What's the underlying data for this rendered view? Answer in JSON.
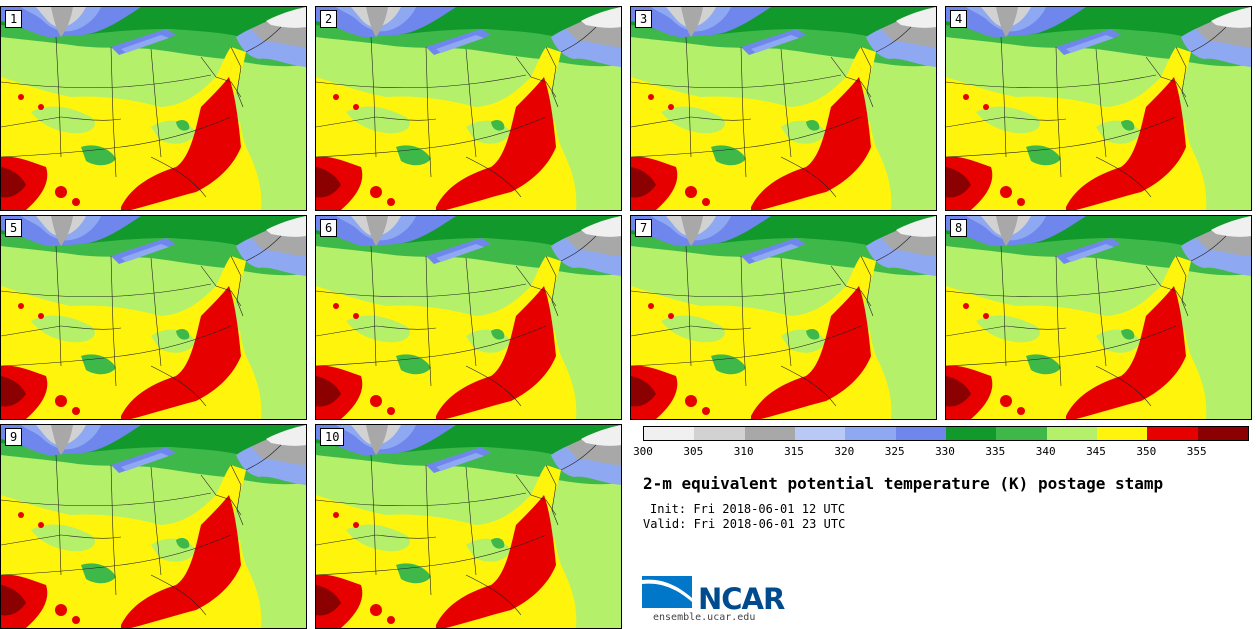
{
  "panels": [
    {
      "label": "1"
    },
    {
      "label": "2"
    },
    {
      "label": "3"
    },
    {
      "label": "4"
    },
    {
      "label": "5"
    },
    {
      "label": "6"
    },
    {
      "label": "7"
    },
    {
      "label": "8"
    },
    {
      "label": "9"
    },
    {
      "label": "10"
    }
  ],
  "colorbar": {
    "colors": [
      "#f0f0f0",
      "#d2d2d2",
      "#a8a8a8",
      "#b9c9f5",
      "#8ea8f2",
      "#6f86ec",
      "#119a2b",
      "#3fb84a",
      "#b4f06a",
      "#fff40c",
      "#e60000",
      "#8b0000"
    ],
    "tick_labels": [
      "300",
      "305",
      "310",
      "315",
      "320",
      "325",
      "330",
      "335",
      "340",
      "345",
      "350",
      "355"
    ]
  },
  "title": "2-m equivalent potential temperature (K) postage stamp",
  "init_text": "Init: Fri 2018-06-01 12 UTC",
  "valid_text": "Valid: Fri 2018-06-01 23 UTC",
  "logo_text": "NCAR",
  "url_text": "ensemble.ucar.edu",
  "map_colors": {
    "green_light": "#b4f06a",
    "green_mid": "#3fb84a",
    "green_dark": "#119a2b",
    "yellow": "#fff40c",
    "red": "#e60000",
    "dark_red": "#8b0000",
    "blue_dark": "#6f86ec",
    "blue_mid": "#8ea8f2",
    "blue_light": "#b9c9f5",
    "gray_dark": "#a8a8a8",
    "gray_light": "#d2d2d2",
    "white": "#f0f0f0"
  }
}
